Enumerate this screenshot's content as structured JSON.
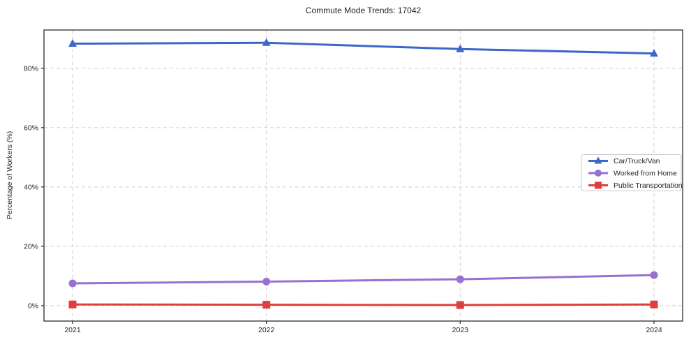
{
  "page": {
    "title": "Commute Mode Trends: 17042"
  },
  "chart_data": {
    "type": "line",
    "title": "Commute Mode Trends: 17042",
    "xlabel": "",
    "ylabel": "Percentage of Workers (%)",
    "categories": [
      "2021",
      "2022",
      "2023",
      "2024"
    ],
    "series": [
      {
        "name": "Car/Truck/Van",
        "color": "#3b67c9",
        "marker": "triangle",
        "values": [
          88.3,
          88.6,
          86.5,
          85.0
        ]
      },
      {
        "name": "Worked from Home",
        "color": "#9770d2",
        "marker": "circle",
        "values": [
          7.5,
          8.1,
          8.9,
          10.3
        ]
      },
      {
        "name": "Public Transportation",
        "color": "#e03e3e",
        "marker": "square",
        "values": [
          0.4,
          0.3,
          0.2,
          0.4
        ]
      }
    ],
    "yticks": [
      0,
      20,
      40,
      60,
      80
    ],
    "ytick_labels": [
      "0%",
      "20%",
      "40%",
      "60%",
      "80%"
    ],
    "ylim": [
      -5.2,
      92.9
    ],
    "grid": true,
    "grid_style": "dashed",
    "legend_position": "center-right",
    "colors": {
      "grid": "#cfcfcf",
      "spine": "#2b2b2b",
      "tick_text": "#262626",
      "legend_border": "#c8c8c8",
      "legend_bg": "#ffffff"
    }
  }
}
